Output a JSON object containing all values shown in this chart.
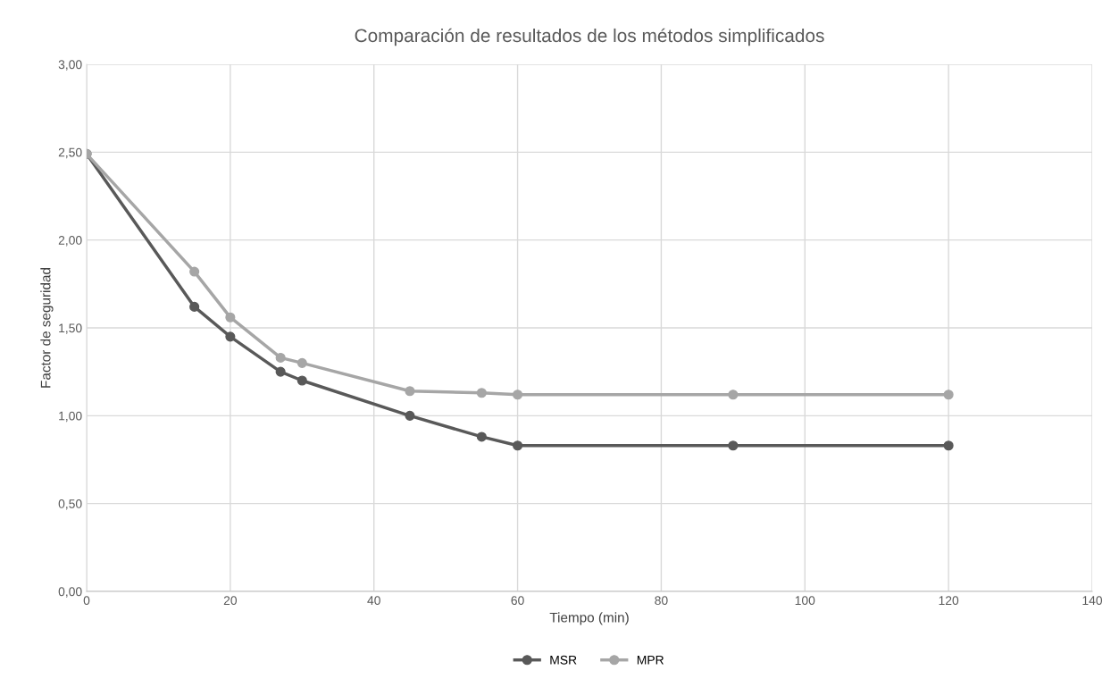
{
  "chart_data": {
    "type": "line",
    "title": "Comparación de resultados de los métodos simplificados",
    "xlabel": "Tiempo (min)",
    "ylabel": "Factor de seguridad",
    "x": [
      0,
      15,
      20,
      27,
      30,
      45,
      55,
      60,
      90,
      120
    ],
    "series": [
      {
        "name": "MSR",
        "color": "#595959",
        "values": [
          2.49,
          1.62,
          1.45,
          1.25,
          1.2,
          1.0,
          0.88,
          0.83,
          0.83,
          0.83
        ]
      },
      {
        "name": "MPR",
        "color": "#a6a6a6",
        "values": [
          2.49,
          1.82,
          1.56,
          1.33,
          1.3,
          1.14,
          1.13,
          1.12,
          1.12,
          1.12
        ]
      }
    ],
    "xlim": [
      0,
      140
    ],
    "xticks": [
      0,
      20,
      40,
      60,
      80,
      100,
      120,
      140
    ],
    "ylim": [
      0,
      3
    ],
    "yticks": [
      {
        "value": 0,
        "label": "0,00"
      },
      {
        "value": 0.5,
        "label": "0,50"
      },
      {
        "value": 1,
        "label": "1,00"
      },
      {
        "value": 1.5,
        "label": "1,50"
      },
      {
        "value": 2,
        "label": "2,00"
      },
      {
        "value": 2.5,
        "label": "2,50"
      },
      {
        "value": 3,
        "label": "3,00"
      }
    ],
    "grid": true,
    "legend": "bottom",
    "marker": "circle",
    "line_style": "solid"
  }
}
